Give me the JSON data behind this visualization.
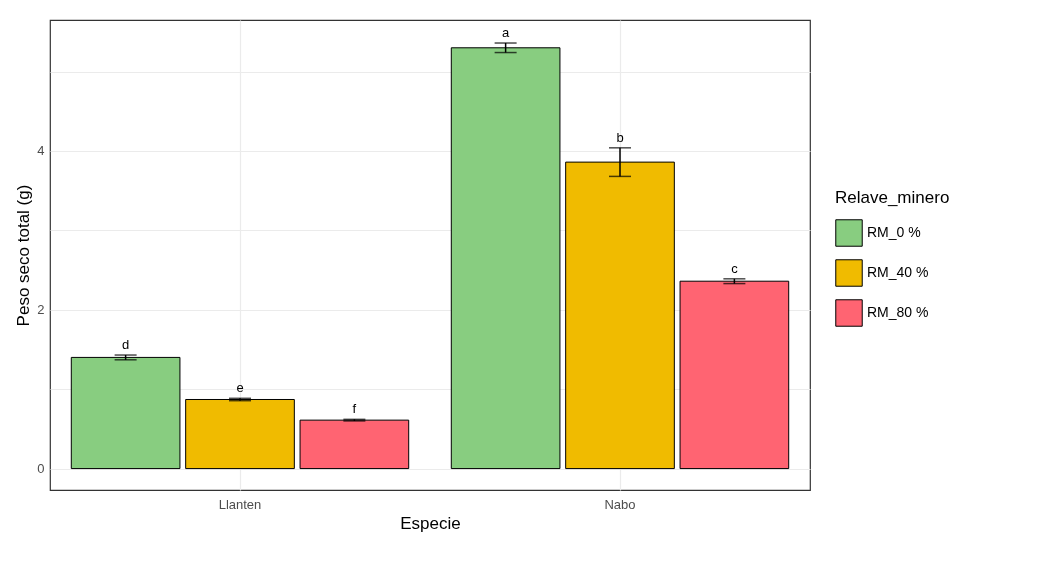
{
  "chart_data": {
    "type": "bar",
    "xlabel": "Especie",
    "ylabel": "Peso seco total (g)",
    "legend_title": "Relave_minero",
    "categories": [
      "Llanten",
      "Nabo"
    ],
    "series": [
      {
        "name": "RM_0 %",
        "color": "#88cd80",
        "values": [
          1.4,
          5.3
        ],
        "errors": [
          0.03,
          0.06
        ]
      },
      {
        "name": "RM_40 %",
        "color": "#f0bb00",
        "values": [
          0.87,
          3.86
        ],
        "errors": [
          0.015,
          0.18
        ]
      },
      {
        "name": "RM_80 %",
        "color": "#ff6472",
        "values": [
          0.61,
          2.36
        ],
        "errors": [
          0.01,
          0.03
        ]
      }
    ],
    "ylim": [
      -0.27,
      5.65
    ],
    "yticks": [
      0,
      {
        "value": 1,
        "label": null
      },
      2,
      {
        "value": 3,
        "label": null
      },
      4,
      {
        "value": 5,
        "label": null
      }
    ],
    "grid": true,
    "legend": "right",
    "annotations": [
      "d",
      "e",
      "f",
      "a",
      "b",
      "c"
    ]
  }
}
